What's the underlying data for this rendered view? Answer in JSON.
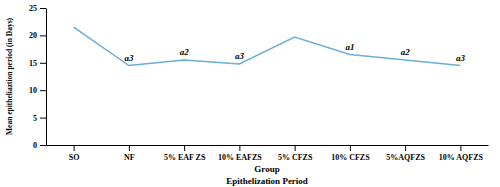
{
  "chart_data": {
    "type": "line",
    "categories": [
      "SO",
      "NF",
      "5% EAF ZS",
      "10% EAFZS",
      "5% CFZS",
      "10% CFZS",
      "5%AQFZS",
      "10% AQFZS"
    ],
    "values": [
      21.5,
      14.5,
      15.5,
      14.8,
      19.7,
      16.5,
      15.5,
      14.5
    ],
    "annotations": [
      null,
      "a3",
      "a2",
      "a3",
      null,
      "a1",
      "a2",
      "a3"
    ],
    "color": "#6baed6",
    "ylabel": "Mean epitheliaztion period (in Days)",
    "xlabel": "Group",
    "xlabel2": "Epithelization Period",
    "ylim": [
      0,
      25
    ],
    "yticks": [
      0,
      5,
      10,
      15,
      20,
      25
    ],
    "grid": false
  }
}
